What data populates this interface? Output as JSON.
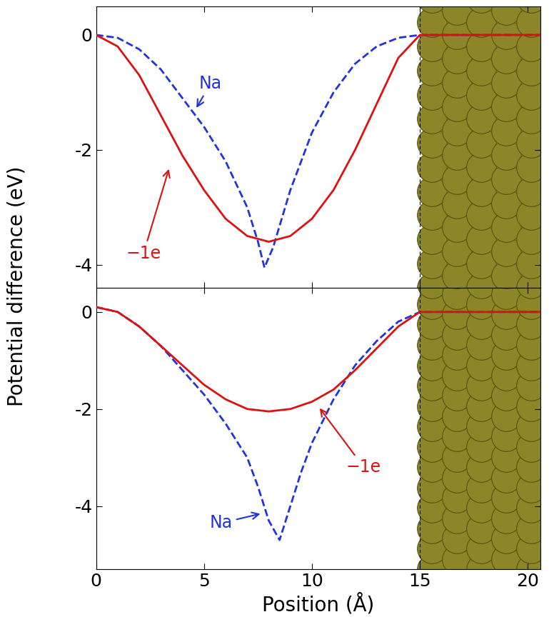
{
  "chart_data": [
    {
      "type": "line",
      "xlim": [
        0,
        20.6
      ],
      "xticks": [
        0,
        5,
        10,
        15,
        20
      ],
      "ylim": [
        -4.4,
        0.5
      ],
      "yticks": [
        -4,
        -2,
        0
      ],
      "tick_labels": "y",
      "surface_x": 15,
      "series": [
        {
          "name": "Na",
          "color": "#2233dd",
          "line_style": "dashed",
          "x": [
            0,
            1,
            2,
            3,
            4,
            5,
            6,
            7,
            7.5,
            7.8,
            8.2,
            9,
            10,
            11,
            12,
            13,
            14,
            15,
            20.6
          ],
          "values": [
            0,
            -0.05,
            -0.25,
            -0.6,
            -1.1,
            -1.6,
            -2.2,
            -3.0,
            -3.6,
            -4.05,
            -3.7,
            -2.7,
            -1.7,
            -1.0,
            -0.5,
            -0.2,
            -0.05,
            0,
            0
          ]
        },
        {
          "name": "−1e",
          "color": "#dd1111",
          "line_style": "solid",
          "x": [
            0,
            1,
            2,
            3,
            4,
            5,
            6,
            7,
            8,
            9,
            10,
            11,
            12,
            13,
            14,
            15,
            20.6
          ],
          "values": [
            0,
            -0.2,
            -0.7,
            -1.4,
            -2.1,
            -2.7,
            -3.2,
            -3.5,
            -3.6,
            -3.5,
            -3.2,
            -2.7,
            -2.0,
            -1.2,
            -0.4,
            0,
            0
          ]
        }
      ],
      "annotations": [
        {
          "text": "Na",
          "color": "#2233dd",
          "x": 5.3,
          "y": -0.85,
          "arrow_x": 4.6,
          "arrow_y": -1.3
        },
        {
          "text": "−1e",
          "color": "#dd1111",
          "x": 2.2,
          "y": -3.8,
          "arrow_x": 3.4,
          "arrow_y": -2.3
        }
      ]
    },
    {
      "type": "line",
      "xlim": [
        0,
        20.6
      ],
      "xticks": [
        0,
        5,
        10,
        15,
        20
      ],
      "ylim": [
        -5.3,
        0.5
      ],
      "yticks": [
        -4,
        -2,
        0
      ],
      "x_label": "Position (Å)",
      "y_label": "Potential difference (eV)",
      "surface_x": 15,
      "series": [
        {
          "name": "Na",
          "color": "#2233dd",
          "line_style": "dashed",
          "x": [
            0,
            1,
            2,
            3,
            4,
            5,
            6,
            7,
            7.5,
            8,
            8.5,
            9,
            9.5,
            10,
            11,
            12,
            13,
            14,
            15,
            20.6
          ],
          "values": [
            0.1,
            0,
            -0.3,
            -0.7,
            -1.2,
            -1.7,
            -2.3,
            -3.0,
            -3.6,
            -4.3,
            -4.7,
            -4.0,
            -3.3,
            -2.7,
            -1.8,
            -1.1,
            -0.6,
            -0.2,
            0,
            0
          ]
        },
        {
          "name": "−1e",
          "color": "#dd1111",
          "line_style": "solid",
          "x": [
            0,
            1,
            2,
            3,
            4,
            5,
            6,
            7,
            8,
            9,
            10,
            11,
            12,
            13,
            14,
            15,
            20.6
          ],
          "values": [
            0.1,
            0,
            -0.3,
            -0.7,
            -1.1,
            -1.5,
            -1.8,
            -2.0,
            -2.05,
            -2.0,
            -1.85,
            -1.6,
            -1.2,
            -0.75,
            -0.3,
            0,
            0
          ]
        }
      ],
      "annotations": [
        {
          "text": "−1e",
          "color": "#dd1111",
          "x": 12.4,
          "y": -3.2,
          "arrow_x": 10.3,
          "arrow_y": -1.95
        },
        {
          "text": "Na",
          "color": "#2233dd",
          "x": 5.8,
          "y": -4.35,
          "arrow_x": 7.7,
          "arrow_y": -4.15
        }
      ]
    }
  ]
}
